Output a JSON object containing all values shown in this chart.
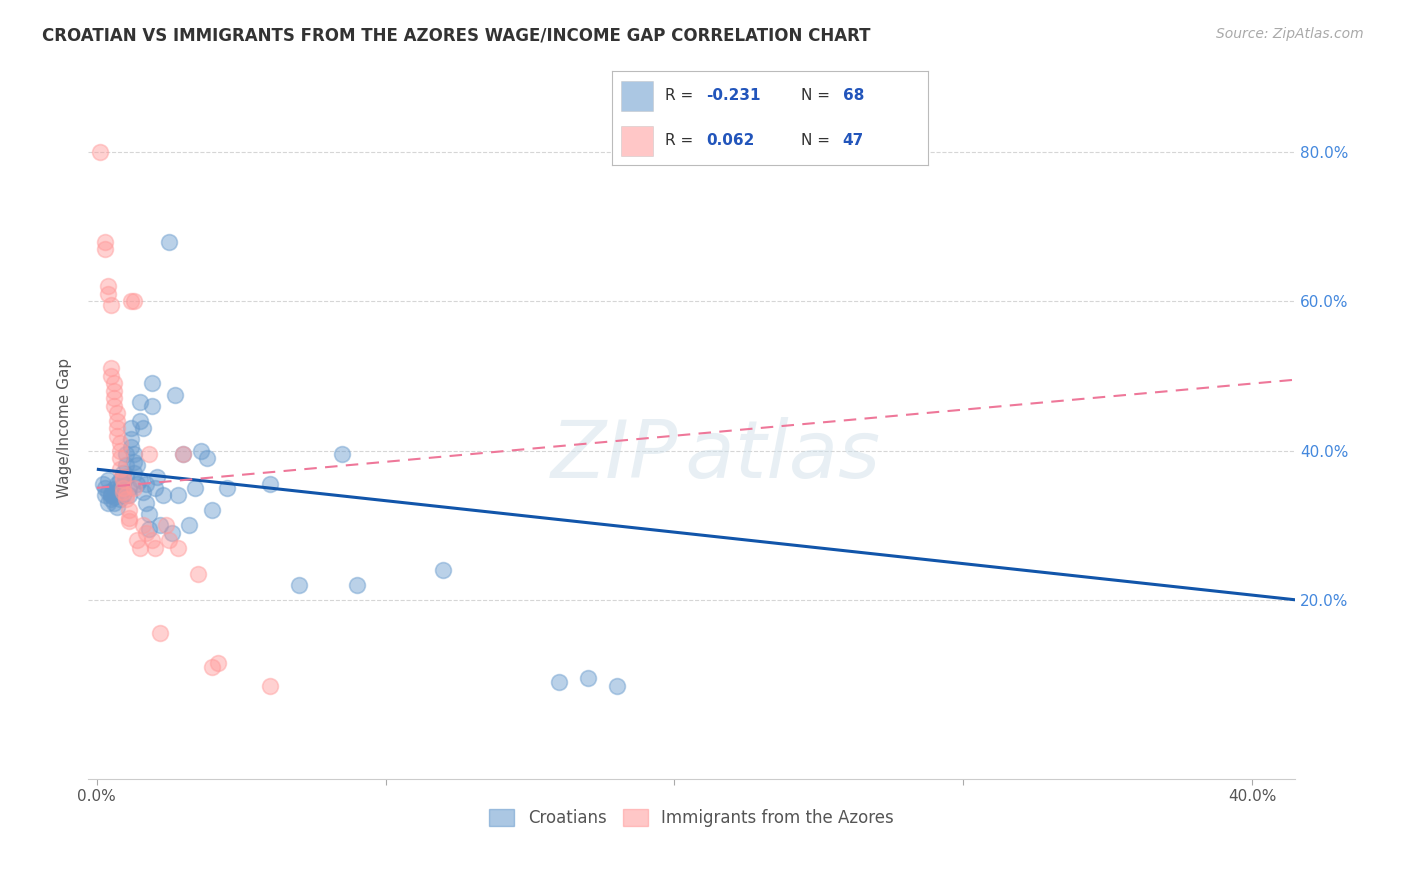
{
  "title": "CROATIAN VS IMMIGRANTS FROM THE AZORES WAGE/INCOME GAP CORRELATION CHART",
  "source": "Source: ZipAtlas.com",
  "ylabel": "Wage/Income Gap",
  "ytick_labels": [
    "80.0%",
    "60.0%",
    "40.0%",
    "20.0%"
  ],
  "ytick_values": [
    0.8,
    0.6,
    0.4,
    0.2
  ],
  "xlim": [
    -0.003,
    0.415
  ],
  "ylim": [
    -0.04,
    0.9
  ],
  "legend_blue_label": "Croatians",
  "legend_pink_label": "Immigrants from the Azores",
  "blue_scatter": [
    [
      0.002,
      0.355
    ],
    [
      0.003,
      0.35
    ],
    [
      0.003,
      0.34
    ],
    [
      0.004,
      0.345
    ],
    [
      0.004,
      0.36
    ],
    [
      0.004,
      0.33
    ],
    [
      0.005,
      0.34
    ],
    [
      0.005,
      0.342
    ],
    [
      0.005,
      0.335
    ],
    [
      0.006,
      0.348
    ],
    [
      0.006,
      0.33
    ],
    [
      0.006,
      0.338
    ],
    [
      0.007,
      0.355
    ],
    [
      0.007,
      0.325
    ],
    [
      0.007,
      0.345
    ],
    [
      0.008,
      0.36
    ],
    [
      0.008,
      0.335
    ],
    [
      0.008,
      0.35
    ],
    [
      0.009,
      0.355
    ],
    [
      0.009,
      0.34
    ],
    [
      0.009,
      0.37
    ],
    [
      0.01,
      0.395
    ],
    [
      0.01,
      0.38
    ],
    [
      0.01,
      0.365
    ],
    [
      0.011,
      0.35
    ],
    [
      0.011,
      0.34
    ],
    [
      0.012,
      0.43
    ],
    [
      0.012,
      0.415
    ],
    [
      0.012,
      0.405
    ],
    [
      0.013,
      0.395
    ],
    [
      0.013,
      0.385
    ],
    [
      0.013,
      0.37
    ],
    [
      0.014,
      0.355
    ],
    [
      0.014,
      0.38
    ],
    [
      0.015,
      0.465
    ],
    [
      0.015,
      0.44
    ],
    [
      0.015,
      0.36
    ],
    [
      0.016,
      0.43
    ],
    [
      0.016,
      0.345
    ],
    [
      0.017,
      0.33
    ],
    [
      0.017,
      0.355
    ],
    [
      0.018,
      0.315
    ],
    [
      0.018,
      0.295
    ],
    [
      0.019,
      0.49
    ],
    [
      0.019,
      0.46
    ],
    [
      0.02,
      0.35
    ],
    [
      0.021,
      0.365
    ],
    [
      0.022,
      0.3
    ],
    [
      0.023,
      0.34
    ],
    [
      0.025,
      0.68
    ],
    [
      0.026,
      0.29
    ],
    [
      0.027,
      0.475
    ],
    [
      0.028,
      0.34
    ],
    [
      0.03,
      0.395
    ],
    [
      0.032,
      0.3
    ],
    [
      0.034,
      0.35
    ],
    [
      0.036,
      0.4
    ],
    [
      0.038,
      0.39
    ],
    [
      0.04,
      0.32
    ],
    [
      0.045,
      0.35
    ],
    [
      0.06,
      0.355
    ],
    [
      0.07,
      0.22
    ],
    [
      0.085,
      0.395
    ],
    [
      0.09,
      0.22
    ],
    [
      0.12,
      0.24
    ],
    [
      0.16,
      0.09
    ],
    [
      0.17,
      0.095
    ],
    [
      0.18,
      0.085
    ]
  ],
  "pink_scatter": [
    [
      0.001,
      0.8
    ],
    [
      0.003,
      0.68
    ],
    [
      0.003,
      0.67
    ],
    [
      0.004,
      0.62
    ],
    [
      0.004,
      0.61
    ],
    [
      0.005,
      0.595
    ],
    [
      0.005,
      0.51
    ],
    [
      0.005,
      0.5
    ],
    [
      0.006,
      0.49
    ],
    [
      0.006,
      0.48
    ],
    [
      0.006,
      0.47
    ],
    [
      0.006,
      0.46
    ],
    [
      0.007,
      0.45
    ],
    [
      0.007,
      0.44
    ],
    [
      0.007,
      0.43
    ],
    [
      0.007,
      0.42
    ],
    [
      0.008,
      0.41
    ],
    [
      0.008,
      0.4
    ],
    [
      0.008,
      0.39
    ],
    [
      0.008,
      0.375
    ],
    [
      0.009,
      0.365
    ],
    [
      0.009,
      0.36
    ],
    [
      0.009,
      0.35
    ],
    [
      0.009,
      0.345
    ],
    [
      0.01,
      0.34
    ],
    [
      0.01,
      0.335
    ],
    [
      0.011,
      0.32
    ],
    [
      0.011,
      0.31
    ],
    [
      0.011,
      0.305
    ],
    [
      0.012,
      0.6
    ],
    [
      0.013,
      0.35
    ],
    [
      0.013,
      0.6
    ],
    [
      0.014,
      0.28
    ],
    [
      0.015,
      0.27
    ],
    [
      0.016,
      0.3
    ],
    [
      0.017,
      0.29
    ],
    [
      0.018,
      0.395
    ],
    [
      0.019,
      0.28
    ],
    [
      0.02,
      0.27
    ],
    [
      0.022,
      0.155
    ],
    [
      0.024,
      0.3
    ],
    [
      0.025,
      0.28
    ],
    [
      0.028,
      0.27
    ],
    [
      0.03,
      0.395
    ],
    [
      0.035,
      0.235
    ],
    [
      0.04,
      0.11
    ],
    [
      0.042,
      0.115
    ],
    [
      0.06,
      0.085
    ]
  ],
  "blue_line": [
    [
      0.0,
      0.375
    ],
    [
      0.415,
      0.2
    ]
  ],
  "pink_line": [
    [
      0.0,
      0.35
    ],
    [
      0.415,
      0.495
    ]
  ],
  "blue_color": "#6699CC",
  "pink_color": "#FF9999",
  "blue_line_color": "#1155AA",
  "pink_line_color": "#EE7799",
  "background_color": "#FFFFFF",
  "grid_color": "#CCCCCC",
  "title_color": "#333333",
  "axis_label_color": "#555555",
  "ytick_color": "#4488DD",
  "legend_text_color": "#2255BB"
}
